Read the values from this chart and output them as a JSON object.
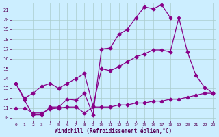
{
  "title": "",
  "xlabel": "Windchill (Refroidissement éolien,°C)",
  "bg_color": "#cceeff",
  "line_color": "#880088",
  "grid_color": "#aacccc",
  "xlim_min": -0.5,
  "xlim_max": 23.3,
  "ylim_min": 9.7,
  "ylim_max": 21.7,
  "yticks": [
    10,
    11,
    12,
    13,
    14,
    15,
    16,
    17,
    18,
    19,
    20,
    21
  ],
  "xticks": [
    0,
    1,
    2,
    3,
    4,
    5,
    6,
    7,
    8,
    9,
    10,
    11,
    12,
    13,
    14,
    15,
    16,
    17,
    18,
    19,
    20,
    21,
    22,
    23
  ],
  "line1_x": [
    0,
    1,
    2,
    3,
    4,
    5,
    6,
    7,
    8,
    9,
    10,
    11,
    12,
    13,
    14,
    15,
    16,
    17,
    18
  ],
  "line1_y": [
    13.5,
    11.8,
    10.3,
    10.3,
    11.1,
    11.1,
    11.9,
    11.8,
    12.5,
    10.3,
    17.0,
    17.1,
    18.5,
    19.0,
    20.2,
    21.3,
    21.1,
    21.5,
    20.2
  ],
  "line2_x": [
    0,
    1,
    2,
    3,
    4,
    5,
    6,
    7,
    8,
    9,
    10,
    11,
    12,
    13,
    14,
    15,
    16,
    17,
    18,
    19,
    20,
    21,
    22,
    23
  ],
  "line2_y": [
    13.5,
    12.0,
    12.5,
    13.2,
    13.5,
    13.0,
    13.5,
    14.0,
    14.5,
    11.2,
    15.0,
    14.8,
    15.2,
    15.7,
    16.2,
    16.5,
    16.9,
    16.9,
    16.7,
    20.2,
    16.7,
    14.3,
    13.1,
    12.5
  ],
  "line3_x": [
    0,
    1,
    2,
    3,
    4,
    5,
    6,
    7,
    8,
    9,
    10,
    11,
    12,
    13,
    14,
    15,
    16,
    17,
    18,
    19,
    20,
    21,
    22,
    23
  ],
  "line3_y": [
    11.0,
    11.0,
    10.5,
    10.5,
    10.9,
    11.0,
    11.1,
    11.1,
    10.5,
    11.1,
    11.1,
    11.1,
    11.3,
    11.3,
    11.5,
    11.5,
    11.7,
    11.7,
    11.9,
    11.9,
    12.1,
    12.3,
    12.5,
    12.5
  ]
}
